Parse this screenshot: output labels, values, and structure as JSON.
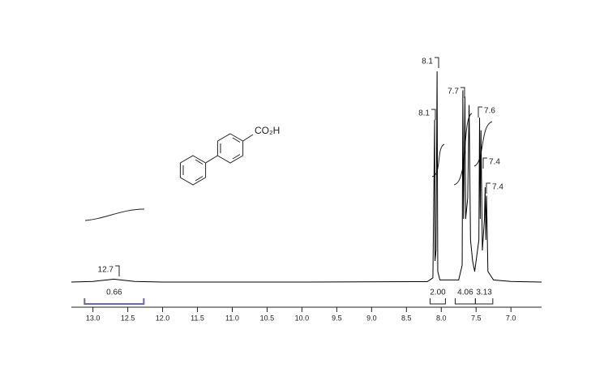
{
  "chart_data": {
    "type": "line",
    "structure_label": "CO₂H",
    "series": [
      {
        "color": "#000000",
        "x": [
          13.31,
          13.0,
          12.8,
          12.7,
          12.6,
          12.4,
          12.0,
          10.0,
          8.2,
          8.12,
          8.095,
          8.09,
          8.075,
          8.06,
          8.05,
          8.02,
          7.75,
          7.7,
          7.69,
          7.68,
          7.66,
          7.65,
          7.62,
          7.6,
          7.58,
          7.55,
          7.52,
          7.46,
          7.45,
          7.44,
          7.43,
          7.41,
          7.38,
          7.37,
          7.36,
          7.35,
          7.33,
          7.25,
          7.0,
          6.56
        ],
        "values": [
          0,
          0.3,
          1.0,
          1.4,
          1.0,
          0.3,
          0,
          0,
          0.2,
          2,
          77,
          10,
          15,
          100,
          5,
          1,
          1,
          8,
          91,
          30,
          88,
          30,
          40,
          84,
          20,
          10,
          5,
          20,
          78,
          30,
          72,
          15,
          30,
          45,
          20,
          41,
          5,
          1,
          0.3,
          0
        ]
      }
    ],
    "peaks": [
      12.7,
      8.1,
      8.1,
      7.7,
      7.6,
      7.4,
      7.4
    ],
    "integrals": {
      "ranges": [
        [
          13.12,
          12.27
        ],
        [
          8.16,
          7.94
        ],
        [
          7.8,
          7.51
        ],
        [
          7.51,
          7.26
        ]
      ],
      "values": [
        0.66,
        2,
        4.06,
        3.13
      ],
      "value_labels": [
        "0.66",
        "2.00",
        "4.06",
        "3.13"
      ]
    },
    "xlim": [
      13.31,
      6.56
    ],
    "ylim": [
      0,
      100
    ],
    "xticks": [
      {
        "value": 13,
        "label": "13.0"
      },
      12.5,
      {
        "value": 12,
        "label": "12.0"
      },
      11.5,
      {
        "value": 11,
        "label": "11.0"
      },
      10.5,
      {
        "value": 10,
        "label": "10.0"
      },
      9.5,
      {
        "value": 9,
        "label": "9.0"
      },
      8.5,
      {
        "value": 8,
        "label": "8.0"
      },
      7.5,
      {
        "value": 7,
        "label": "7.0"
      }
    ]
  }
}
